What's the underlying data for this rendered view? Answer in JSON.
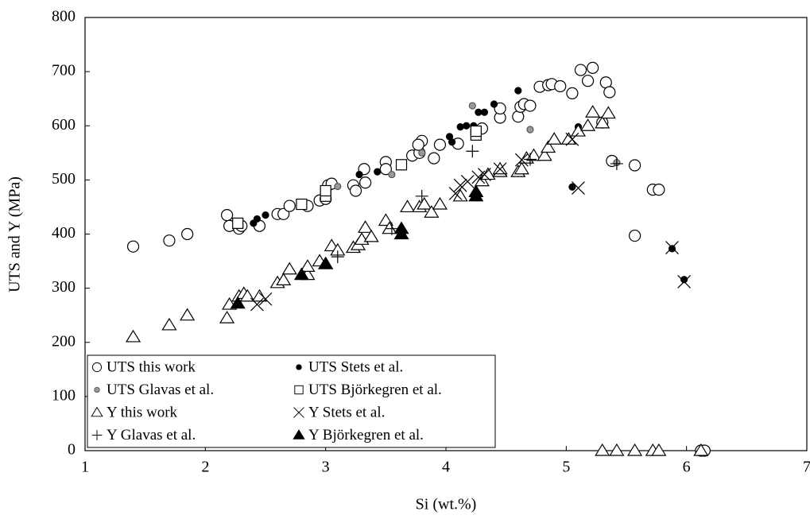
{
  "chart_data": {
    "type": "scatter",
    "x_label": "Si (wt.%)",
    "y_label": "UTS and Y (MPa)",
    "xlim": [
      1,
      7
    ],
    "xticks": [
      1,
      2,
      3,
      4,
      5,
      6,
      7
    ],
    "ylim": [
      0,
      800
    ],
    "yticks": [
      0,
      100,
      200,
      300,
      400,
      500,
      600,
      700,
      800
    ],
    "legend": "lower left",
    "series": [
      {
        "name": "UTS this work",
        "marker": "circle",
        "color": "#000000",
        "fill": "#ffffff",
        "x": [
          1.4,
          1.7,
          1.85,
          2.18,
          2.2,
          2.28,
          2.3,
          2.45,
          2.6,
          2.65,
          2.7,
          2.85,
          2.95,
          3.0,
          3.02,
          3.05,
          3.23,
          3.25,
          3.32,
          3.33,
          3.5,
          3.5,
          3.72,
          3.78,
          3.8,
          3.77,
          3.9,
          3.95,
          4.1,
          4.3,
          4.45,
          4.45,
          4.6,
          4.62,
          4.65,
          4.7,
          4.78,
          4.85,
          4.88,
          4.95,
          5.05,
          5.12,
          5.18,
          5.22,
          5.3,
          5.33,
          5.36,
          5.38,
          5.57,
          5.57,
          5.72,
          5.77,
          6.12,
          6.15
        ],
        "y": [
          377,
          388,
          400,
          435,
          415,
          410,
          415,
          415,
          437,
          437,
          452,
          452,
          462,
          465,
          490,
          493,
          490,
          480,
          520,
          495,
          533,
          520,
          545,
          550,
          572,
          565,
          540,
          565,
          567,
          595,
          615,
          632,
          617,
          635,
          640,
          637,
          672,
          675,
          677,
          673,
          660,
          703,
          683,
          707,
          606,
          680,
          662,
          535,
          527,
          397,
          482,
          482,
          0,
          0
        ]
      },
      {
        "name": "UTS Stets et al.",
        "marker": "dot",
        "color": "#000000",
        "fill": "#000000",
        "x": [
          2.4,
          2.43,
          2.5,
          3.28,
          3.43,
          4.03,
          4.05,
          4.12,
          4.17,
          4.23,
          4.27,
          4.32,
          4.4,
          4.6,
          5.05,
          5.1,
          5.88,
          5.98
        ],
        "y": [
          420,
          428,
          435,
          510,
          515,
          580,
          570,
          598,
          600,
          600,
          625,
          625,
          640,
          665,
          487,
          598,
          373,
          316
        ]
      },
      {
        "name": "UTS Glavas et al.",
        "marker": "dot",
        "color": "#555555",
        "fill": "#999999",
        "x": [
          3.1,
          3.55,
          3.8,
          4.22,
          4.7,
          5.42
        ],
        "y": [
          488,
          510,
          550,
          637,
          593,
          532
        ]
      },
      {
        "name": "UTS Björkegren et al.",
        "marker": "square",
        "color": "#000000",
        "fill": "#ffffff",
        "x": [
          2.27,
          2.8,
          3.0,
          3.0,
          3.63,
          4.25,
          4.25
        ],
        "y": [
          420,
          455,
          470,
          480,
          528,
          583,
          590
        ]
      },
      {
        "name": "Y this work",
        "marker": "triangle",
        "color": "#000000",
        "fill": "#ffffff",
        "x": [
          1.4,
          1.7,
          1.85,
          2.18,
          2.2,
          2.28,
          2.32,
          2.35,
          2.45,
          2.6,
          2.65,
          2.7,
          2.85,
          2.85,
          2.95,
          3.0,
          3.05,
          3.1,
          3.23,
          3.27,
          3.3,
          3.33,
          3.38,
          3.5,
          3.53,
          3.68,
          3.78,
          3.82,
          3.88,
          3.95,
          4.12,
          4.3,
          4.35,
          4.45,
          4.45,
          4.6,
          4.63,
          4.67,
          4.73,
          4.82,
          4.85,
          4.9,
          5.02,
          5.1,
          5.18,
          5.22,
          5.3,
          5.35,
          5.3,
          5.42,
          5.57,
          5.72,
          5.77,
          6.12
        ],
        "y": [
          210,
          232,
          250,
          245,
          270,
          285,
          290,
          285,
          285,
          310,
          315,
          335,
          325,
          340,
          350,
          345,
          378,
          370,
          375,
          380,
          390,
          412,
          395,
          425,
          410,
          450,
          450,
          455,
          440,
          455,
          470,
          498,
          510,
          515,
          520,
          515,
          520,
          540,
          545,
          545,
          560,
          575,
          575,
          590,
          600,
          625,
          605,
          623,
          0,
          0,
          0,
          0,
          0,
          0
        ]
      },
      {
        "name": "Y Stets et al.",
        "marker": "x",
        "color": "#000000",
        "fill": "none",
        "x": [
          2.43,
          2.5,
          4.08,
          4.12,
          4.18,
          4.27,
          4.32,
          4.45,
          4.63,
          5.05,
          5.1,
          5.88,
          5.98
        ],
        "y": [
          270,
          280,
          475,
          490,
          497,
          505,
          510,
          520,
          537,
          575,
          485,
          375,
          312
        ]
      },
      {
        "name": "Y Glavas et al.",
        "marker": "plus",
        "color": "#000000",
        "fill": "none",
        "x": [
          3.1,
          3.55,
          3.8,
          4.22,
          4.7,
          5.42
        ],
        "y": [
          358,
          410,
          470,
          553,
          538,
          530
        ]
      },
      {
        "name": "Y Björkegren et al.",
        "marker": "triangle",
        "color": "#000000",
        "fill": "#000000",
        "x": [
          2.27,
          2.8,
          3.0,
          3.63,
          3.63,
          4.25,
          4.25
        ],
        "y": [
          272,
          325,
          345,
          410,
          400,
          470,
          478
        ]
      }
    ]
  }
}
